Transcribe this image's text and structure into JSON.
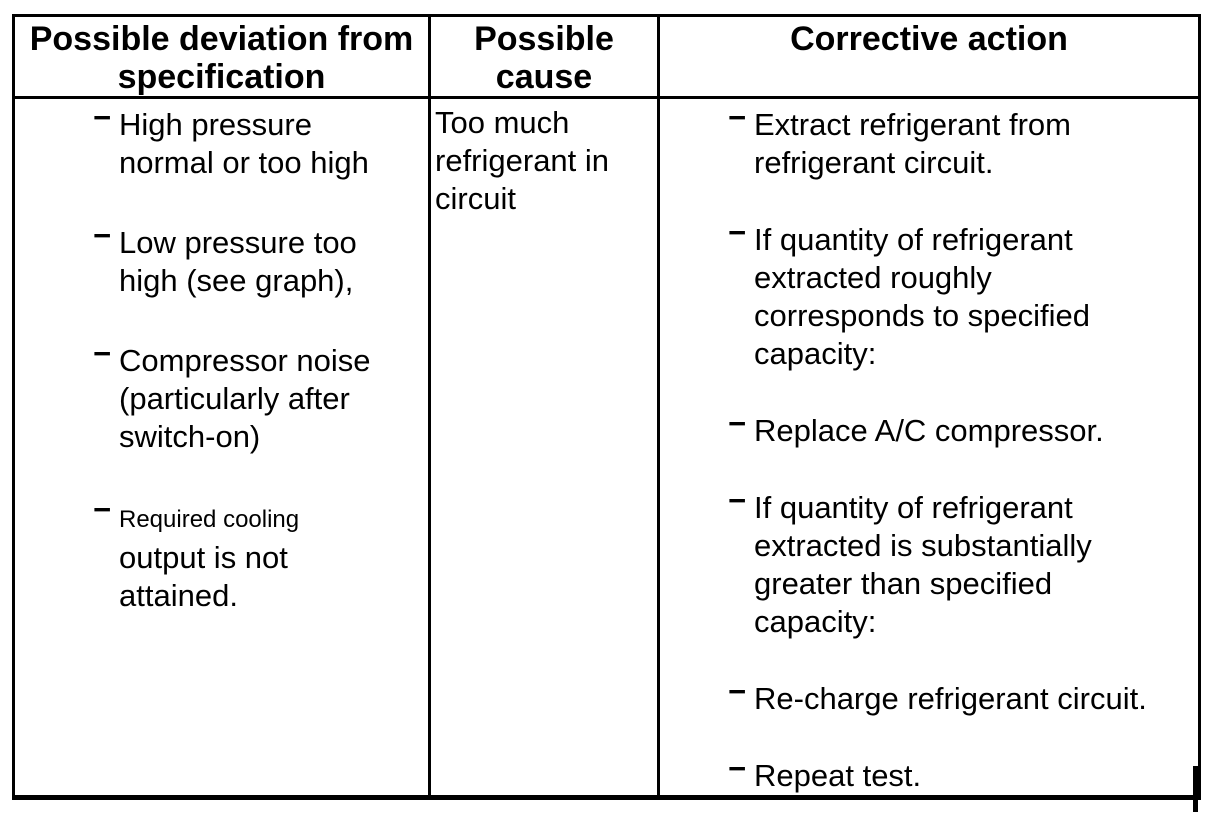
{
  "table": {
    "bullet_char": "−",
    "headers": {
      "deviation": "Possible deviation from\nspecification",
      "cause": "Possible\ncause",
      "corrective": "Corrective action"
    },
    "deviation_items": [
      "High pressure\nnormal or too high",
      "Low pressure too\nhigh (see graph),",
      "Compressor noise\n(particularly after\nswitch-on)",
      {
        "small": "Required cooling",
        "text": "output is not\nattained."
      }
    ],
    "cause_text": "Too much\nrefrigerant in\ncircuit",
    "corrective_items": [
      "Extract refrigerant from\nrefrigerant circuit.",
      "If quantity of refrigerant\nextracted roughly\ncorresponds to specified\ncapacity:",
      "Replace A/C compressor.",
      "If quantity of refrigerant\nextracted is substantially\ngreater than specified\ncapacity:",
      "Re-charge refrigerant circuit.",
      "Repeat test."
    ]
  }
}
